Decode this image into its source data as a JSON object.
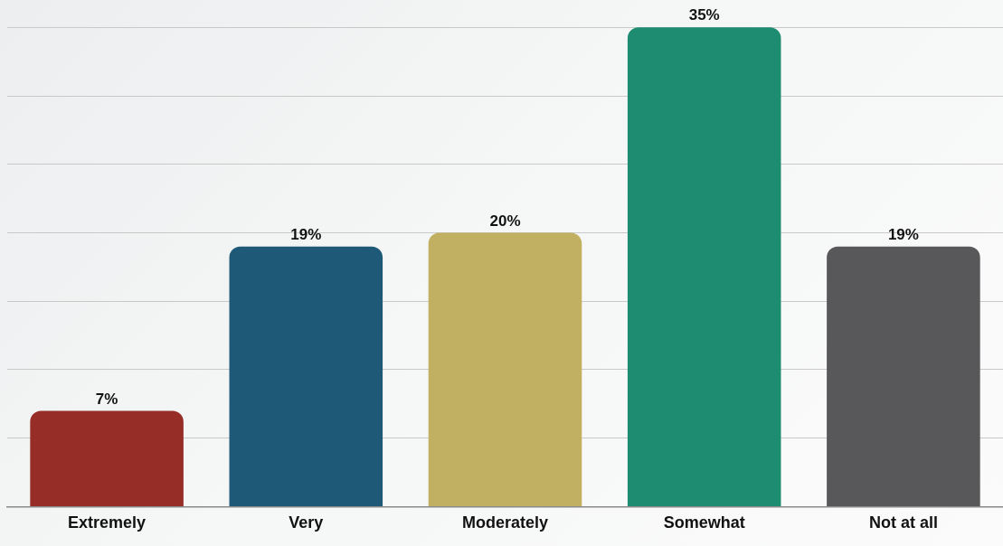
{
  "chart_data": {
    "type": "bar",
    "categories": [
      "Extremely",
      "Very",
      "Moderately",
      "Somewhat",
      "Not at all"
    ],
    "values": [
      7,
      19,
      20,
      35,
      19
    ],
    "colors": [
      "#962d26",
      "#1e5a78",
      "#c1b062",
      "#1e8c70",
      "#58585a"
    ],
    "value_labels": [
      "7%",
      "19%",
      "20%",
      "35%",
      "19%"
    ],
    "ylim": [
      0,
      37
    ],
    "yticks": [
      {
        "value": 0,
        "label": null
      },
      {
        "value": 5,
        "label": null
      },
      {
        "value": 10,
        "label": null
      },
      {
        "value": 15,
        "label": null
      },
      {
        "value": 20,
        "label": null
      },
      {
        "value": 25,
        "label": null
      },
      {
        "value": 30,
        "label": null
      },
      {
        "value": 35,
        "label": null
      }
    ],
    "grid": "y",
    "tick_labels": "x"
  }
}
